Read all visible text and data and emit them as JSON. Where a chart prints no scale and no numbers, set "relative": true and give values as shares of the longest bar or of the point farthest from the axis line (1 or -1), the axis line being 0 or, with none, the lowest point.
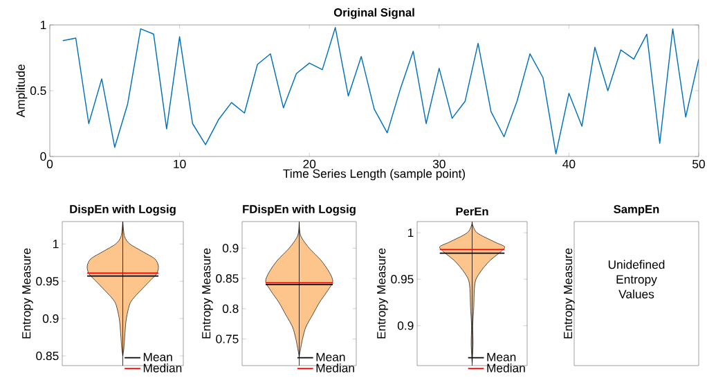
{
  "chart_data": [
    {
      "type": "line",
      "title": "Original Signal",
      "xlabel": "Time Series Length (sample point)",
      "ylabel": "Amplitude",
      "x": [
        1,
        2,
        3,
        4,
        5,
        6,
        7,
        8,
        9,
        10,
        11,
        12,
        13,
        14,
        15,
        16,
        17,
        18,
        19,
        20,
        21,
        22,
        23,
        24,
        25,
        26,
        27,
        28,
        29,
        30,
        31,
        32,
        33,
        34,
        35,
        36,
        37,
        38,
        39,
        40,
        41,
        42,
        43,
        44,
        45,
        46,
        47,
        48,
        49,
        50
      ],
      "values": [
        0.88,
        0.9,
        0.25,
        0.59,
        0.07,
        0.4,
        0.97,
        0.93,
        0.21,
        0.91,
        0.25,
        0.09,
        0.28,
        0.41,
        0.33,
        0.7,
        0.78,
        0.37,
        0.63,
        0.71,
        0.66,
        0.98,
        0.46,
        0.76,
        0.36,
        0.18,
        0.51,
        0.8,
        0.25,
        0.67,
        0.29,
        0.42,
        0.86,
        0.34,
        0.15,
        0.42,
        0.78,
        0.6,
        0.02,
        0.48,
        0.23,
        0.83,
        0.5,
        0.81,
        0.74,
        0.93,
        0.1,
        0.97,
        0.3,
        0.74
      ],
      "color": "#0072bd",
      "xlim": [
        0,
        50
      ],
      "ylim": [
        0,
        1
      ],
      "xticks": [
        0,
        10,
        20,
        30,
        40,
        50
      ],
      "yticks": [
        0,
        0.5,
        1
      ]
    },
    {
      "type": "area",
      "orientation": "horizontal",
      "relative": true,
      "title": "DispEn with Logsig",
      "ylabel": "Entropy Measure",
      "color": "#fdc58c",
      "x": [
        0.85,
        0.86,
        0.88,
        0.9,
        0.92,
        0.93,
        0.94,
        0.95,
        0.96,
        0.97,
        0.98,
        0.99,
        1.0,
        1.01,
        1.03
      ],
      "values": [
        0,
        0.03,
        0.06,
        0.1,
        0.2,
        0.35,
        0.55,
        0.75,
        0.95,
        1.0,
        0.9,
        0.55,
        0.2,
        0.05,
        0
      ],
      "ylim": [
        0.837,
        1.03
      ],
      "yticks": [
        0.85,
        0.9,
        0.95,
        1
      ],
      "ref_lines": [
        {
          "axis": "y",
          "value": 0.957,
          "label": "Mean",
          "color": "#000000"
        },
        {
          "axis": "y",
          "value": 0.961,
          "label": "Median",
          "color": "#ff0000"
        }
      ],
      "legend": "bottom right"
    },
    {
      "type": "area",
      "orientation": "horizontal",
      "relative": true,
      "title": "FDispEn with Logsig",
      "ylabel": "Entropy Measure",
      "color": "#fdc58c",
      "x": [
        0.72,
        0.73,
        0.75,
        0.77,
        0.79,
        0.81,
        0.83,
        0.845,
        0.86,
        0.88,
        0.9,
        0.92,
        0.94
      ],
      "values": [
        0,
        0.03,
        0.1,
        0.2,
        0.4,
        0.6,
        0.85,
        1.0,
        0.9,
        0.65,
        0.3,
        0.05,
        0
      ],
      "ylim": [
        0.706,
        0.944
      ],
      "yticks": [
        0.75,
        0.8,
        0.85,
        0.9
      ],
      "ref_lines": [
        {
          "axis": "y",
          "value": 0.84,
          "label": "Mean",
          "color": "#000000"
        },
        {
          "axis": "y",
          "value": 0.843,
          "label": "Median",
          "color": "#ff0000"
        }
      ],
      "legend": "bottom right"
    },
    {
      "type": "area",
      "orientation": "horizontal",
      "relative": true,
      "title": "PerEn",
      "ylabel": "Entropy Measure",
      "color": "#fdc58c",
      "x": [
        0.86,
        0.88,
        0.9,
        0.92,
        0.94,
        0.95,
        0.96,
        0.97,
        0.98,
        0.985,
        0.99,
        1.0,
        1.01
      ],
      "values": [
        0,
        0.03,
        0.02,
        0.05,
        0.07,
        0.12,
        0.3,
        0.55,
        0.9,
        1.0,
        0.7,
        0.15,
        0
      ],
      "ylim": [
        0.857,
        1.012
      ],
      "yticks": [
        0.9,
        0.95,
        1
      ],
      "ref_lines": [
        {
          "axis": "y",
          "value": 0.978,
          "label": "Mean",
          "color": "#000000"
        },
        {
          "axis": "y",
          "value": 0.982,
          "label": "Median",
          "color": "#ff0000"
        }
      ],
      "legend": "bottom right"
    },
    {
      "type": "other",
      "title": "SampEn",
      "ylabel": "Entropy Measure",
      "annotations": [
        "Unidefined Entropy Values"
      ]
    }
  ]
}
